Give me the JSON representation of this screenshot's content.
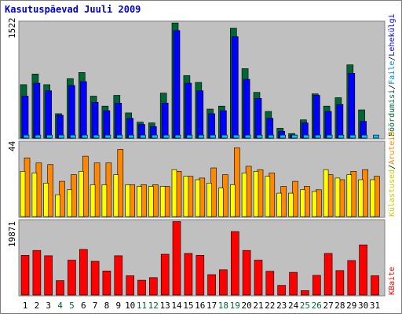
{
  "title": "Kasutuspäevad Juuli 2009",
  "colors": {
    "title": "#0000cc",
    "plot_bg": "#c0c0c0",
    "pages": "#0000ff",
    "visits": "#006633",
    "files": "#00c0ff",
    "hits": "#ff8800",
    "sites": "#ffff00",
    "kbytes": "#ff0000",
    "weekend_label": "#006633",
    "weekday_label": "#000000"
  },
  "chart_data": [
    {
      "type": "bar",
      "panel": "top",
      "ymax_label": "1522",
      "legend": [
        "Pöördumisi",
        "/",
        "Faile",
        "/",
        "Lehekülgi"
      ],
      "ylim": [
        0,
        1522
      ],
      "categories": [
        "1",
        "2",
        "3",
        "4",
        "5",
        "6",
        "7",
        "8",
        "9",
        "10",
        "11",
        "12",
        "13",
        "14",
        "15",
        "16",
        "17",
        "18",
        "19",
        "20",
        "21",
        "22",
        "23",
        "24",
        "25",
        "26",
        "27",
        "28",
        "29",
        "30",
        "31"
      ],
      "weekend": [
        4,
        5,
        11,
        12,
        18,
        19,
        25,
        26
      ],
      "series": [
        {
          "name": "Pöördumisi",
          "values": [
            700,
            840,
            700,
            320,
            780,
            860,
            550,
            420,
            560,
            330,
            210,
            200,
            590,
            1510,
            820,
            730,
            380,
            420,
            1440,
            910,
            600,
            350,
            130,
            60,
            240,
            580,
            420,
            530,
            960,
            370,
            0
          ]
        },
        {
          "name": "Faile",
          "values": [
            40,
            40,
            40,
            40,
            40,
            40,
            40,
            40,
            40,
            40,
            40,
            40,
            40,
            40,
            40,
            40,
            40,
            40,
            40,
            40,
            40,
            40,
            40,
            40,
            40,
            40,
            40,
            40,
            40,
            40,
            40
          ]
        },
        {
          "name": "Lehekülgi",
          "values": [
            550,
            720,
            620,
            300,
            690,
            740,
            470,
            360,
            460,
            260,
            180,
            150,
            460,
            1410,
            720,
            620,
            320,
            360,
            1330,
            770,
            520,
            260,
            90,
            40,
            200,
            560,
            350,
            440,
            850,
            220,
            0
          ]
        }
      ]
    },
    {
      "type": "bar",
      "panel": "middle",
      "ymax_label": "44",
      "legend": [
        "Külastused",
        "/",
        "Aruteid"
      ],
      "ylim": [
        0,
        44
      ],
      "series": [
        {
          "name": "Aruteid",
          "values": [
            35,
            32,
            31,
            21,
            25,
            36,
            32,
            32,
            40,
            19,
            19,
            19,
            18,
            27,
            24,
            23,
            29,
            25,
            41,
            30,
            28,
            26,
            18,
            21,
            18,
            16,
            25,
            22,
            27,
            28,
            24
          ]
        },
        {
          "name": "Külastused",
          "values": [
            27,
            26,
            20,
            13,
            16,
            27,
            19,
            19,
            25,
            19,
            18,
            18,
            18,
            28,
            24,
            22,
            20,
            17,
            19,
            26,
            27,
            24,
            14,
            14,
            16,
            15,
            28,
            23,
            25,
            22,
            22
          ]
        }
      ]
    },
    {
      "type": "bar",
      "panel": "bottom",
      "ymax_label": "19871",
      "legend": [
        "KBaite"
      ],
      "ylim": [
        0,
        19871
      ],
      "series": [
        {
          "name": "KBaite",
          "values": [
            10700,
            12000,
            10600,
            3900,
            9400,
            12300,
            9100,
            6500,
            10600,
            5200,
            4000,
            4700,
            11000,
            19800,
            11200,
            10700,
            5500,
            6800,
            17100,
            12000,
            9400,
            6400,
            2600,
            6100,
            1200,
            5300,
            11200,
            6600,
            9300,
            13500,
            5200
          ]
        }
      ]
    }
  ]
}
